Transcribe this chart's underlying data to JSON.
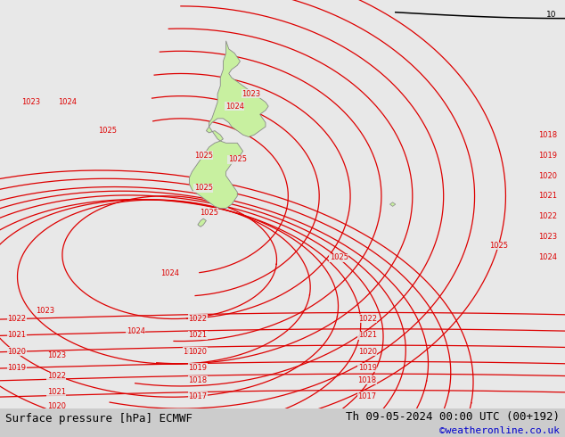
{
  "title_left": "Surface pressure [hPa] ECMWF",
  "title_right": "Th 09-05-2024 00:00 UTC (00+192)",
  "copyright": "©weatheronline.co.uk",
  "background_color": "#e8e8e8",
  "land_color": "#c8f0a0",
  "land_edge_color": "#888888",
  "contour_color_red": "#dd0000",
  "contour_color_black": "#000000",
  "bottom_bar_color": "#cccccc",
  "title_color": "#000000",
  "copyright_color": "#0000cc",
  "font_size_title": 9,
  "font_size_labels": 6,
  "figwidth": 6.34,
  "figheight": 4.9,
  "dpi": 100
}
